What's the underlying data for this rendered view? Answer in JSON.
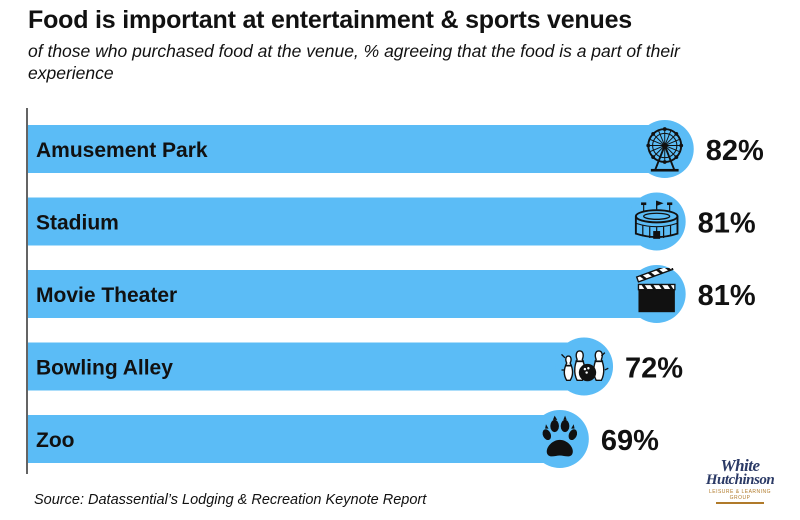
{
  "chart_data": {
    "type": "bar",
    "orientation": "horizontal",
    "title": "Food is important at entertainment & sports venues",
    "subtitle": "of those who purchased food at the venue, % agreeing that the food is a part of their experience",
    "categories": [
      "Amusement Park",
      "Stadium",
      "Movie Theater",
      "Bowling Alley",
      "Zoo"
    ],
    "values": [
      82,
      81,
      81,
      72,
      69
    ],
    "value_labels": [
      "82%",
      "81%",
      "81%",
      "72%",
      "69%"
    ],
    "icons": [
      "ferris-wheel-icon",
      "stadium-icon",
      "clapperboard-icon",
      "bowling-pins-icon",
      "paw-print-icon"
    ],
    "bar_color": "#5bbcf6",
    "icon_circle_color": "#5bbcf6",
    "grid": false,
    "legend": "none"
  },
  "footer": {
    "source": "Source: Datassential’s Lodging & Recreation Keynote Report",
    "logo_line1": "White",
    "logo_line2": "Hutchinson",
    "logo_tagline": "LEISURE & LEARNING GROUP"
  }
}
